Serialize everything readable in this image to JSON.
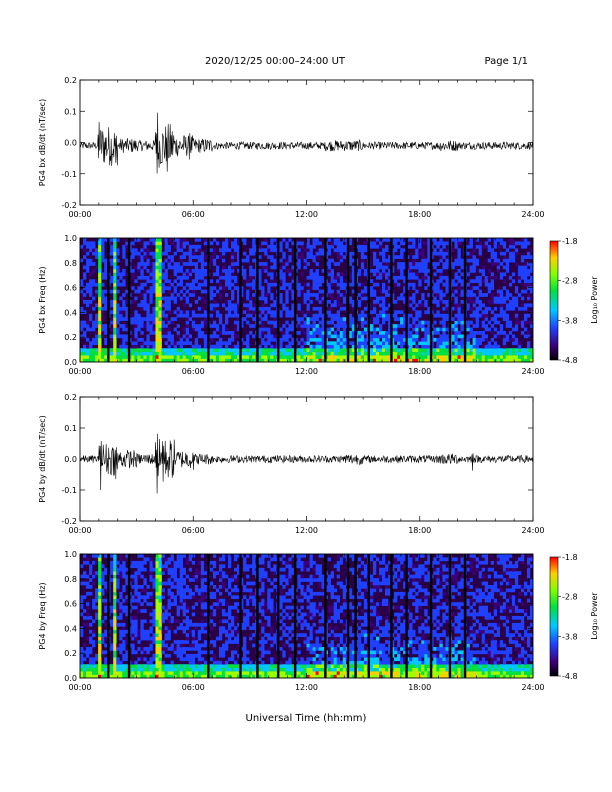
{
  "header": {
    "title": "2020/12/25  00:00–24:00 UT",
    "page": "Page 1/1"
  },
  "x_axis_label": "Universal Time (hh:mm)",
  "chart_data": [
    {
      "type": "line",
      "ylabel": "PG4 bx dB/dt (nT/sec)",
      "ylim": [
        -0.2,
        0.2
      ],
      "yticks": [
        -0.2,
        -0.1,
        0.0,
        0.1,
        0.2
      ],
      "ytick_labels": [
        "-0.2",
        "-0.1",
        "0.0",
        "0.1",
        "0.2"
      ],
      "xlim": [
        "00:00",
        "24:00"
      ],
      "xtick_labels": [
        "00:00",
        "06:00",
        "12:00",
        "18:00",
        "24:00"
      ],
      "baseline": -0.01,
      "series": [
        {
          "values_hourly_envelope": [
            0.02,
            0.11,
            0.04,
            0.03,
            0.12,
            0.06,
            0.04,
            0.02,
            0.02,
            0.02,
            0.02,
            0.02,
            0.02,
            0.03,
            0.03,
            0.02,
            0.02,
            0.02,
            0.02,
            0.03,
            0.02,
            0.02,
            0.02,
            0.02
          ],
          "spikes": [
            {
              "hour": 1.0,
              "max": 0.09,
              "min": -0.06
            },
            {
              "hour": 1.9,
              "max": 0.04,
              "min": -0.07
            },
            {
              "hour": 4.1,
              "max": 0.12,
              "min": -0.13
            },
            {
              "hour": 4.6,
              "max": 0.02,
              "min": -0.13
            },
            {
              "hour": 5.8,
              "max": 0.05,
              "min": -0.06
            }
          ]
        }
      ]
    },
    {
      "type": "heatmap",
      "ylabel": "PG4 bx Freq (Hz)",
      "ylim": [
        0.0,
        1.0
      ],
      "yticks": [
        0.0,
        0.2,
        0.4,
        0.6,
        0.8,
        1.0
      ],
      "ytick_labels": [
        "0.0",
        "0.2",
        "0.4",
        "0.6",
        "0.8",
        "1.0"
      ],
      "xlim": [
        "00:00",
        "24:00"
      ],
      "xtick_labels": [
        "00:00",
        "06:00",
        "12:00",
        "18:00",
        "24:00"
      ],
      "colorbar": {
        "label": "Log₁₀ Power",
        "range": [
          -4.8,
          -1.8
        ],
        "ticks": [
          -4.8,
          -3.8,
          -2.8,
          -1.8
        ],
        "tick_labels": [
          "-4.8",
          "-3.8",
          "-2.8",
          "-1.8"
        ]
      },
      "gap_hours": [
        1.5,
        2.6,
        6.8,
        8.5,
        9.4,
        10.5,
        11.4,
        13.0,
        14.2,
        14.6,
        15.3,
        16.5,
        17.3,
        18.6,
        19.6,
        20.4
      ],
      "event_hours": [
        1.0,
        1.9,
        4.1,
        4.2
      ],
      "band_region": {
        "start_hour": 12.0,
        "end_hour": 21.0,
        "upper_hz": 0.45
      }
    },
    {
      "type": "line",
      "ylabel": "PG4 by dB/dt (nT/sec)",
      "ylim": [
        -0.2,
        0.2
      ],
      "yticks": [
        -0.2,
        -0.1,
        0.0,
        0.1,
        0.2
      ],
      "ytick_labels": [
        "-0.2",
        "-0.1",
        "0.0",
        "0.1",
        "0.2"
      ],
      "xlim": [
        "00:00",
        "24:00"
      ],
      "xtick_labels": [
        "00:00",
        "06:00",
        "12:00",
        "18:00",
        "24:00"
      ],
      "baseline": 0.0,
      "series": [
        {
          "values_hourly_envelope": [
            0.02,
            0.09,
            0.05,
            0.03,
            0.11,
            0.05,
            0.03,
            0.02,
            0.02,
            0.02,
            0.02,
            0.02,
            0.02,
            0.02,
            0.03,
            0.02,
            0.02,
            0.02,
            0.02,
            0.03,
            0.02,
            0.02,
            0.02,
            0.02
          ],
          "spikes": [
            {
              "hour": 1.1,
              "max": 0.09,
              "min": -0.11
            },
            {
              "hour": 1.9,
              "max": 0.06,
              "min": -0.07
            },
            {
              "hour": 4.1,
              "max": 0.1,
              "min": -0.15
            },
            {
              "hour": 4.4,
              "max": 0.09,
              "min": -0.08
            },
            {
              "hour": 6.0,
              "max": 0.03,
              "min": -0.04
            },
            {
              "hour": 20.8,
              "max": 0.03,
              "min": -0.04
            }
          ]
        }
      ]
    },
    {
      "type": "heatmap",
      "ylabel": "PG4 by Freq (Hz)",
      "ylim": [
        0.0,
        1.0
      ],
      "yticks": [
        0.0,
        0.2,
        0.4,
        0.6,
        0.8,
        1.0
      ],
      "ytick_labels": [
        "0.0",
        "0.2",
        "0.4",
        "0.6",
        "0.8",
        "1.0"
      ],
      "xlim": [
        "00:00",
        "24:00"
      ],
      "xtick_labels": [
        "00:00",
        "06:00",
        "12:00",
        "18:00",
        "24:00"
      ],
      "colorbar": {
        "label": "Log₁₀ Power",
        "range": [
          -4.8,
          -1.8
        ],
        "ticks": [
          -4.8,
          -3.8,
          -2.8,
          -1.8
        ],
        "tick_labels": [
          "-4.8",
          "-3.8",
          "-2.8",
          "-1.8"
        ]
      },
      "gap_hours": [
        1.5,
        2.6,
        6.8,
        8.5,
        9.4,
        10.5,
        11.4,
        13.0,
        14.2,
        14.6,
        15.3,
        16.5,
        17.3,
        18.6,
        19.6,
        20.4
      ],
      "event_hours": [
        1.0,
        1.9,
        4.1,
        4.2
      ],
      "band_region": {
        "start_hour": 12.0,
        "end_hour": 21.0,
        "upper_hz": 0.4
      }
    }
  ]
}
